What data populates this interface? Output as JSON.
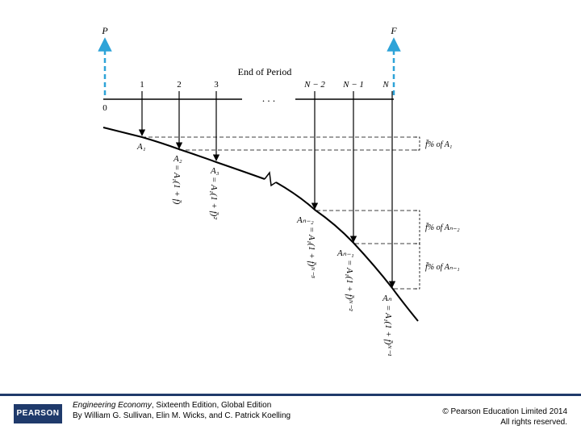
{
  "diagram": {
    "top_labels": {
      "present": "P",
      "future": "F"
    },
    "axis_title": "End of Period",
    "periods": [
      "1",
      "2",
      "3",
      "N − 2",
      "N − 1",
      "N"
    ],
    "origin_label": "0",
    "ellipsis": ". . .",
    "cashflows": {
      "a1": "A₁",
      "a2": "A₂",
      "a3": "A₃",
      "an2": "Aₙ₋₂",
      "an1": "Aₙ₋₁",
      "an": "Aₙ"
    },
    "formulas": {
      "a2": "= A₁(1 + f̄)",
      "a3": "= A₁(1 + f̄)²",
      "an2": "= A₁(1 + f̄)ᴺ⁻³",
      "an1": "= A₁(1 + f̄)ᴺ⁻²",
      "an": "= A₁(1 + f̄)ᴺ⁻¹"
    },
    "bracket_labels": {
      "first": "f̄% of A₁",
      "second": "f̄% of Aₙ₋₂",
      "third": "f̄% of Aₙ₋₁"
    },
    "colors": {
      "dashed_arrow": "#2ea3d8",
      "line": "#000000",
      "accent": "#1f3a6b"
    }
  },
  "footer": {
    "logo": "PEARSON",
    "book_title": "Engineering Economy",
    "book_edition": ", Sixteenth Edition, Global Edition",
    "authors": "By William G. Sullivan, Elin M. Wicks, and C. Patrick Koelling",
    "copyright": "© Pearson Education Limited 2014",
    "rights": "All rights reserved."
  }
}
